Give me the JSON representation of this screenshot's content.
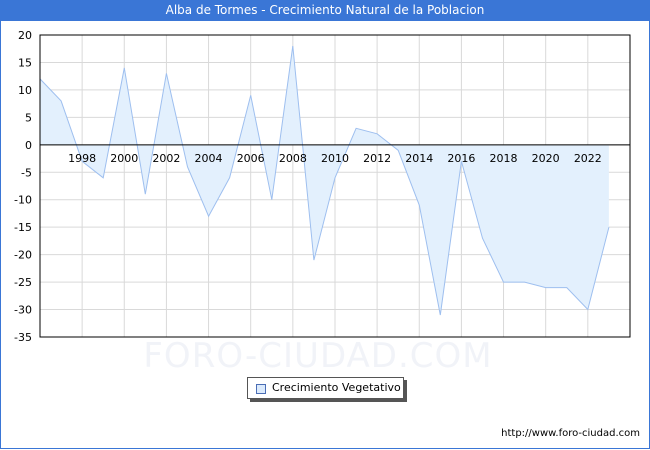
{
  "title": "Alba de Tormes - Crecimiento Natural de la Poblacion",
  "watermark": "FORO-CIUDAD.COM",
  "source": "http://www.foro-ciudad.com",
  "legend": {
    "label": "Crecimiento Vegetativo",
    "swatch_color": "#dbeafc"
  },
  "colors": {
    "title_bg": "#3a76d6",
    "line": "#9ebfef",
    "fill": "#e3f0fd",
    "grid": "#d9d9d9"
  },
  "chart_data": {
    "type": "area",
    "title": "Alba de Tormes - Crecimiento Natural de la Poblacion",
    "xlabel": "",
    "ylabel": "",
    "ylim": [
      -35,
      20
    ],
    "yticks": [
      20,
      15,
      10,
      5,
      0,
      -5,
      -10,
      -15,
      -20,
      -25,
      -30,
      -35
    ],
    "xticks": [
      "1998",
      "2000",
      "2002",
      "2004",
      "2006",
      "2008",
      "2010",
      "2012",
      "2014",
      "2016",
      "2018",
      "2020",
      "2022"
    ],
    "grid": true,
    "legend_position": "bottom-center",
    "x": [
      1996,
      1997,
      1998,
      1999,
      2000,
      2001,
      2002,
      2003,
      2004,
      2005,
      2006,
      2007,
      2008,
      2009,
      2010,
      2011,
      2012,
      2013,
      2014,
      2015,
      2016,
      2017,
      2018,
      2019,
      2020,
      2021,
      2022,
      2023
    ],
    "series": [
      {
        "name": "Crecimiento Vegetativo",
        "values": [
          12,
          8,
          -3,
          -6,
          14,
          -9,
          13,
          -4,
          -13,
          -6,
          9,
          -10,
          18,
          -21,
          -6,
          3,
          2,
          -1,
          -11,
          -31,
          -3,
          -17,
          -25,
          -25,
          -26,
          -26,
          -30,
          -15
        ]
      }
    ]
  }
}
